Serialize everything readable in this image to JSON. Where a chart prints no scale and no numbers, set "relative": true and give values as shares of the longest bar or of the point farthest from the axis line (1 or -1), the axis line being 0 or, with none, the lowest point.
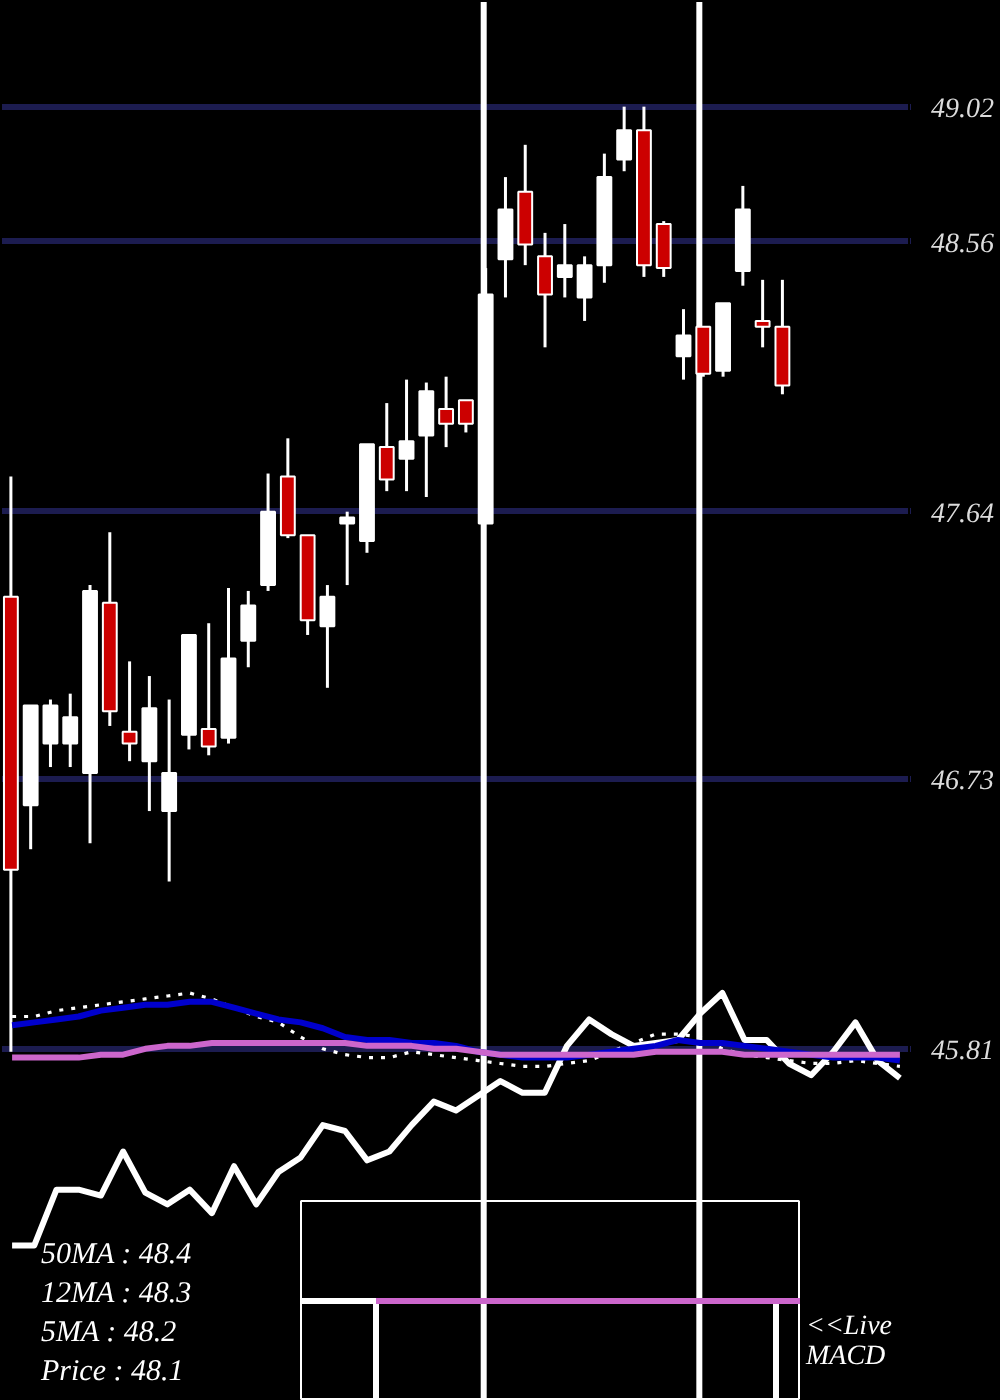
{
  "chart_data": [
    {
      "type": "candlestick",
      "categories": [
        null,
        null,
        null,
        null,
        null,
        null,
        null,
        null,
        null,
        null,
        null,
        null,
        null,
        null,
        null,
        null,
        null,
        null,
        null,
        null,
        null,
        null,
        null,
        null,
        null,
        null,
        null,
        null,
        null,
        null,
        null,
        null,
        null,
        null,
        null,
        null,
        null,
        null,
        null,
        null,
        null,
        null,
        null,
        null,
        null,
        null
      ],
      "ohlc": [
        [
          47.35,
          47.76,
          45.8,
          46.42
        ],
        [
          46.64,
          46.98,
          46.49,
          46.98
        ],
        [
          46.85,
          47.0,
          46.77,
          46.98
        ],
        [
          46.85,
          47.02,
          46.77,
          46.94
        ],
        [
          46.75,
          47.39,
          46.51,
          47.37
        ],
        [
          47.33,
          47.57,
          46.91,
          46.96
        ],
        [
          46.89,
          47.13,
          46.79,
          46.85
        ],
        [
          46.79,
          47.08,
          46.62,
          46.97
        ],
        [
          46.62,
          47.0,
          46.38,
          46.75
        ],
        [
          46.88,
          47.22,
          46.83,
          47.22
        ],
        [
          46.9,
          47.26,
          46.81,
          46.84
        ],
        [
          46.87,
          47.38,
          46.85,
          47.14
        ],
        [
          47.2,
          47.37,
          47.11,
          47.32
        ],
        [
          47.39,
          47.77,
          47.37,
          47.64
        ],
        [
          47.76,
          47.89,
          47.55,
          47.56
        ],
        [
          47.56,
          47.56,
          47.22,
          47.27
        ],
        [
          47.25,
          47.39,
          47.04,
          47.35
        ],
        [
          47.6,
          47.64,
          47.39,
          47.62
        ],
        [
          47.54,
          47.87,
          47.5,
          47.87
        ],
        [
          47.86,
          48.01,
          47.71,
          47.75
        ],
        [
          47.82,
          48.09,
          47.71,
          47.88
        ],
        [
          47.9,
          48.08,
          47.69,
          48.05
        ],
        [
          47.99,
          48.1,
          47.86,
          47.94
        ],
        [
          48.02,
          48.02,
          47.91,
          47.94
        ],
        [
          47.6,
          48.47,
          47.6,
          48.38
        ],
        [
          48.5,
          48.78,
          48.37,
          48.67
        ],
        [
          48.73,
          48.89,
          48.48,
          48.55
        ],
        [
          48.51,
          48.59,
          48.2,
          48.38
        ],
        [
          48.44,
          48.62,
          48.37,
          48.48
        ],
        [
          48.37,
          48.51,
          48.29,
          48.48
        ],
        [
          48.48,
          48.86,
          48.42,
          48.78
        ],
        [
          48.84,
          49.02,
          48.8,
          48.94
        ],
        [
          48.94,
          49.02,
          48.44,
          48.48
        ],
        [
          48.62,
          48.63,
          48.44,
          48.47
        ],
        [
          48.17,
          48.33,
          48.09,
          48.24
        ],
        [
          48.27,
          48.27,
          48.1,
          48.11
        ],
        [
          48.12,
          48.35,
          48.1,
          48.35
        ],
        [
          48.46,
          48.75,
          48.41,
          48.67
        ],
        [
          48.29,
          48.43,
          48.2,
          48.27
        ],
        [
          48.27,
          48.43,
          48.04,
          48.07
        ],
        null,
        null,
        null,
        null,
        null,
        null
      ],
      "colors": [
        "#cc0000",
        "#ffffff",
        "#ffffff",
        "#ffffff",
        "#ffffff",
        "#cc0000",
        "#cc0000",
        "#ffffff",
        "#ffffff",
        "#ffffff",
        "#cc0000",
        "#ffffff",
        "#ffffff",
        "#ffffff",
        "#cc0000",
        "#cc0000",
        "#ffffff",
        "#ffffff",
        "#ffffff",
        "#cc0000",
        "#ffffff",
        "#ffffff",
        "#cc0000",
        "#cc0000",
        "#ffffff",
        "#ffffff",
        "#cc0000",
        "#cc0000",
        "#ffffff",
        "#ffffff",
        "#ffffff",
        "#ffffff",
        "#cc0000",
        "#cc0000",
        "#ffffff",
        "#cc0000",
        "#ffffff",
        "#ffffff",
        "#cc0000",
        "#cc0000",
        null,
        null,
        null,
        null,
        null,
        null
      ],
      "ylim": [
        44.61,
        49.38
      ],
      "yticks": [
        49.02,
        48.56,
        47.64,
        46.73,
        45.81
      ],
      "grid": "y",
      "tick_labels": "y",
      "annotations": [
        "50MA : 48.4",
        "12MA : 48.3",
        "5MA : 48.2",
        "Price : 48.1"
      ]
    },
    {
      "type": "line",
      "categories": [
        null,
        null,
        null,
        null,
        null,
        null,
        null,
        null,
        null,
        null,
        null,
        null,
        null,
        null,
        null,
        null,
        null,
        null,
        null,
        null,
        null,
        null,
        null,
        null,
        null,
        null,
        null,
        null,
        null,
        null,
        null,
        null,
        null,
        null,
        null,
        null,
        null,
        null,
        null,
        null,
        null
      ],
      "series": [
        {
          "color": "#ffffff",
          "line_style": "solid",
          "values": [
            45.14,
            45.14,
            45.33,
            45.33,
            45.31,
            45.46,
            45.32,
            45.28,
            45.33,
            45.25,
            45.41,
            45.28,
            45.39,
            45.44,
            45.55,
            45.53,
            45.43,
            45.46,
            45.55,
            45.63,
            45.6,
            45.65,
            45.7,
            45.66,
            45.66,
            45.82,
            45.91,
            45.86,
            45.82,
            45.83,
            45.84,
            45.93,
            46.0,
            45.84,
            45.84,
            45.76,
            45.72,
            45.8,
            45.9,
            45.77,
            45.71
          ]
        },
        {
          "color": "#ffffff",
          "line_style": "dotted",
          "values": [
            45.92,
            45.92,
            45.94,
            45.95,
            45.96,
            45.97,
            45.98,
            45.99,
            46.0,
            45.98,
            45.95,
            45.92,
            45.9,
            45.85,
            45.81,
            45.79,
            45.78,
            45.78,
            45.8,
            45.79,
            45.78,
            45.77,
            45.76,
            45.75,
            45.75,
            45.76,
            45.77,
            45.8,
            45.83,
            45.86,
            45.86,
            45.85,
            45.81,
            45.79,
            45.78,
            45.77,
            45.76,
            45.76,
            45.77,
            45.76,
            45.75
          ]
        },
        {
          "color": "#0000cc",
          "line_style": "solid",
          "values": [
            45.89,
            45.9,
            45.91,
            45.92,
            45.94,
            45.95,
            45.96,
            45.96,
            45.97,
            45.97,
            45.95,
            45.93,
            45.91,
            45.9,
            45.88,
            45.85,
            45.84,
            45.84,
            45.83,
            45.83,
            45.82,
            45.8,
            45.79,
            45.78,
            45.78,
            45.78,
            45.79,
            45.8,
            45.81,
            45.82,
            45.84,
            45.83,
            45.83,
            45.82,
            45.81,
            45.8,
            45.79,
            45.78,
            45.78,
            45.78,
            45.77
          ]
        },
        {
          "color": "#cc66cc",
          "line_style": "solid",
          "values": [
            45.78,
            45.78,
            45.78,
            45.78,
            45.79,
            45.79,
            45.81,
            45.82,
            45.82,
            45.83,
            45.83,
            45.83,
            45.83,
            45.83,
            45.83,
            45.83,
            45.82,
            45.82,
            45.82,
            45.81,
            45.81,
            45.8,
            45.79,
            45.79,
            45.79,
            45.79,
            45.79,
            45.79,
            45.79,
            45.8,
            45.8,
            45.8,
            45.8,
            45.79,
            45.79,
            45.79,
            45.79,
            45.79,
            45.79,
            45.79,
            45.79
          ]
        }
      ],
      "ylim": [
        44.61,
        49.38
      ],
      "tick_labels": false
    },
    {
      "type": "step",
      "relative": true,
      "categories": [
        null,
        null,
        null,
        null,
        null,
        null,
        null,
        null,
        null,
        null,
        null,
        null,
        null,
        null,
        null,
        null,
        null,
        null,
        null,
        null,
        null
      ],
      "series": [
        {
          "color": "#ffffff",
          "values": [
            1,
            1,
            1,
            0,
            0,
            0,
            0,
            0,
            0,
            0,
            0,
            0,
            0,
            0,
            0,
            0,
            0,
            0,
            0,
            1,
            null
          ]
        },
        {
          "color": "#cc66cc",
          "values": [
            null,
            null,
            null,
            1,
            1,
            1,
            1,
            1,
            1,
            1,
            1,
            1,
            1,
            1,
            1,
            1,
            1,
            1,
            1,
            1,
            1
          ]
        }
      ],
      "annotations": [
        "<<Live MACD"
      ]
    }
  ]
}
